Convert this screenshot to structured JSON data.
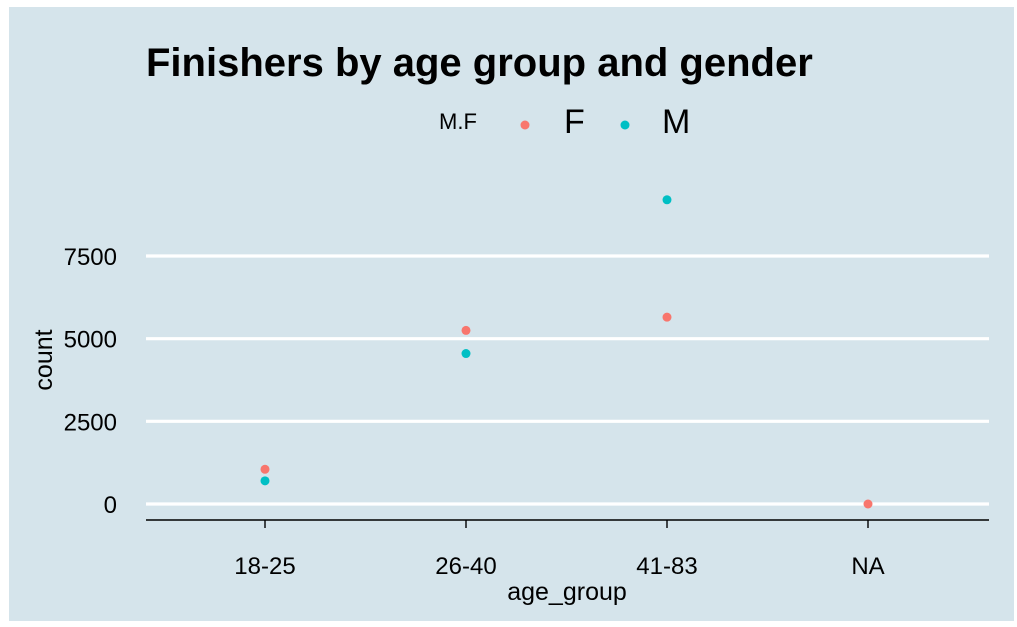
{
  "chart_data": {
    "type": "scatter",
    "title": "Finishers by age group and gender",
    "xlabel": "age_group",
    "ylabel": "count",
    "categories": [
      "18-25",
      "26-40",
      "41-83",
      "NA"
    ],
    "y_ticks": [
      0,
      2500,
      5000,
      7500
    ],
    "y_tick_labels": [
      "0",
      "2500",
      "5000",
      "7500"
    ],
    "ylim": [
      -500,
      9800
    ],
    "grid": "horizontal major lines",
    "legend": {
      "title": "M.F",
      "placement": "top",
      "entries": [
        {
          "label": "F",
          "color": "#F8766D"
        },
        {
          "label": "M",
          "color": "#00BFC4"
        }
      ]
    },
    "series": [
      {
        "name": "F",
        "color": "#F8766D",
        "values": [
          1050,
          5250,
          5650,
          0
        ]
      },
      {
        "name": "M",
        "color": "#00BFC4",
        "values": [
          700,
          4550,
          9200,
          null
        ]
      }
    ]
  }
}
